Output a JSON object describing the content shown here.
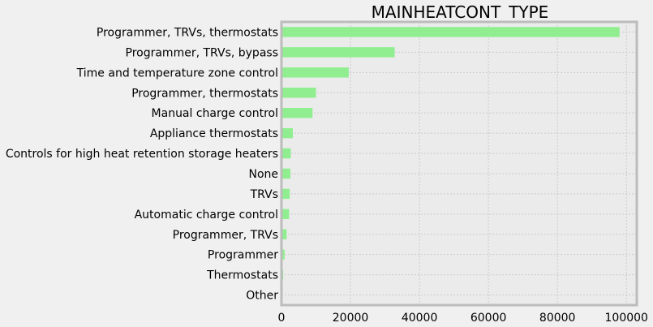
{
  "chart_data": {
    "type": "bar",
    "orientation": "horizontal",
    "title": "MAINHEATCONT_TYPE",
    "xlabel": "",
    "ylabel": "",
    "categories": [
      "Programmer, TRVs, thermostats",
      "Programmer, TRVs, bypass",
      "Time and temperature zone control",
      "Programmer, thermostats",
      "Manual charge control",
      "Appliance thermostats",
      "Controls for high heat retention storage heaters",
      "None",
      "TRVs",
      "Automatic charge control",
      "Programmer, TRVs",
      "Programmer",
      "Thermostats",
      "Other"
    ],
    "values": [
      98000,
      32800,
      19500,
      10000,
      9000,
      3300,
      2700,
      2600,
      2400,
      2200,
      1500,
      900,
      500,
      200
    ],
    "xlim": [
      0,
      103000
    ],
    "xticks": [
      0,
      20000,
      40000,
      60000,
      80000,
      100000
    ],
    "xtick_labels": [
      "0",
      "20000",
      "40000",
      "60000",
      "80000",
      "100000"
    ],
    "grid": true,
    "bar_color": "#90ee90",
    "plot_background": "#ebebeb",
    "figure_background": "#f0f0f0",
    "grid_color": "#cbcbcb",
    "spine_color": "#bcbcbc"
  }
}
